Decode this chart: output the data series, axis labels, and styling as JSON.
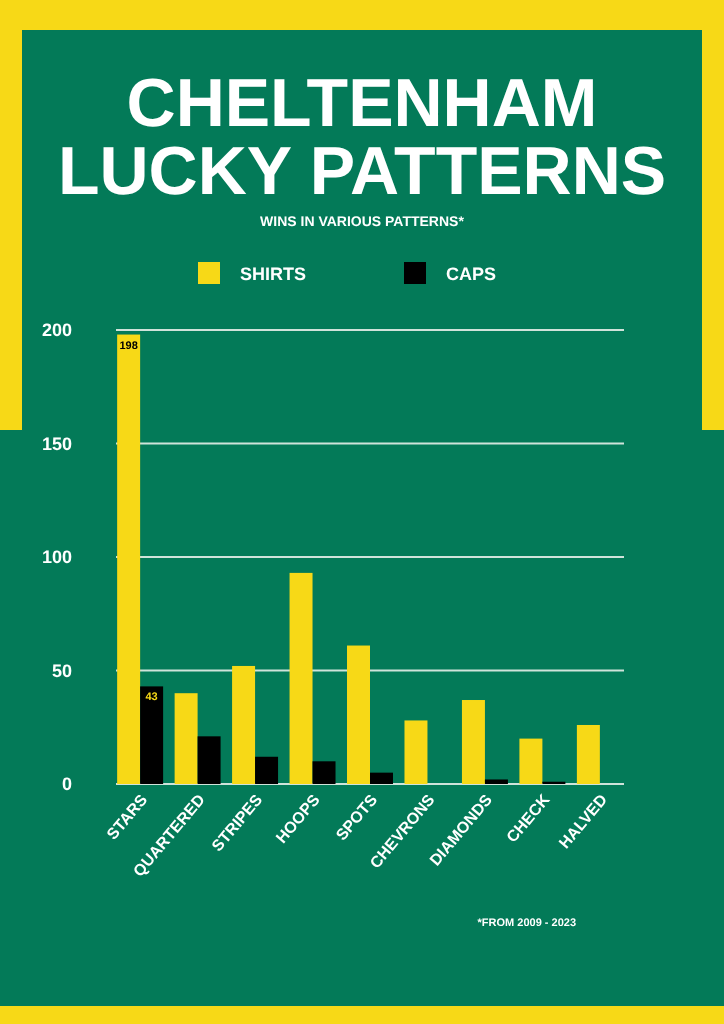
{
  "chart_data": {
    "type": "bar",
    "title": "CHELTENHAM\nLUCKY PATTERNS",
    "subtitle": "WINS IN VARIOUS PATTERNS*",
    "categories": [
      "STARS",
      "QUARTERED",
      "STRIPES",
      "HOOPS",
      "SPOTS",
      "CHEVRONS",
      "DIAMONDS",
      "CHECK",
      "HALVED"
    ],
    "series": [
      {
        "name": "SHIRTS",
        "color": "#f7d917",
        "values": [
          198,
          40,
          52,
          93,
          61,
          28,
          37,
          20,
          26
        ],
        "value_labels": [
          "198",
          null,
          null,
          null,
          null,
          null,
          null,
          null,
          null
        ]
      },
      {
        "name": "CAPS",
        "color": "#000000",
        "values": [
          43,
          21,
          12,
          10,
          5,
          0,
          2,
          1,
          0
        ],
        "value_labels": [
          "43",
          null,
          null,
          null,
          null,
          null,
          null,
          null,
          null
        ]
      }
    ],
    "ylim": [
      0,
      200
    ],
    "yticks": [
      0,
      50,
      100,
      150,
      200
    ],
    "grid": "y",
    "legend": "top",
    "annotations": [
      "*FROM 2009 - 2023"
    ]
  }
}
